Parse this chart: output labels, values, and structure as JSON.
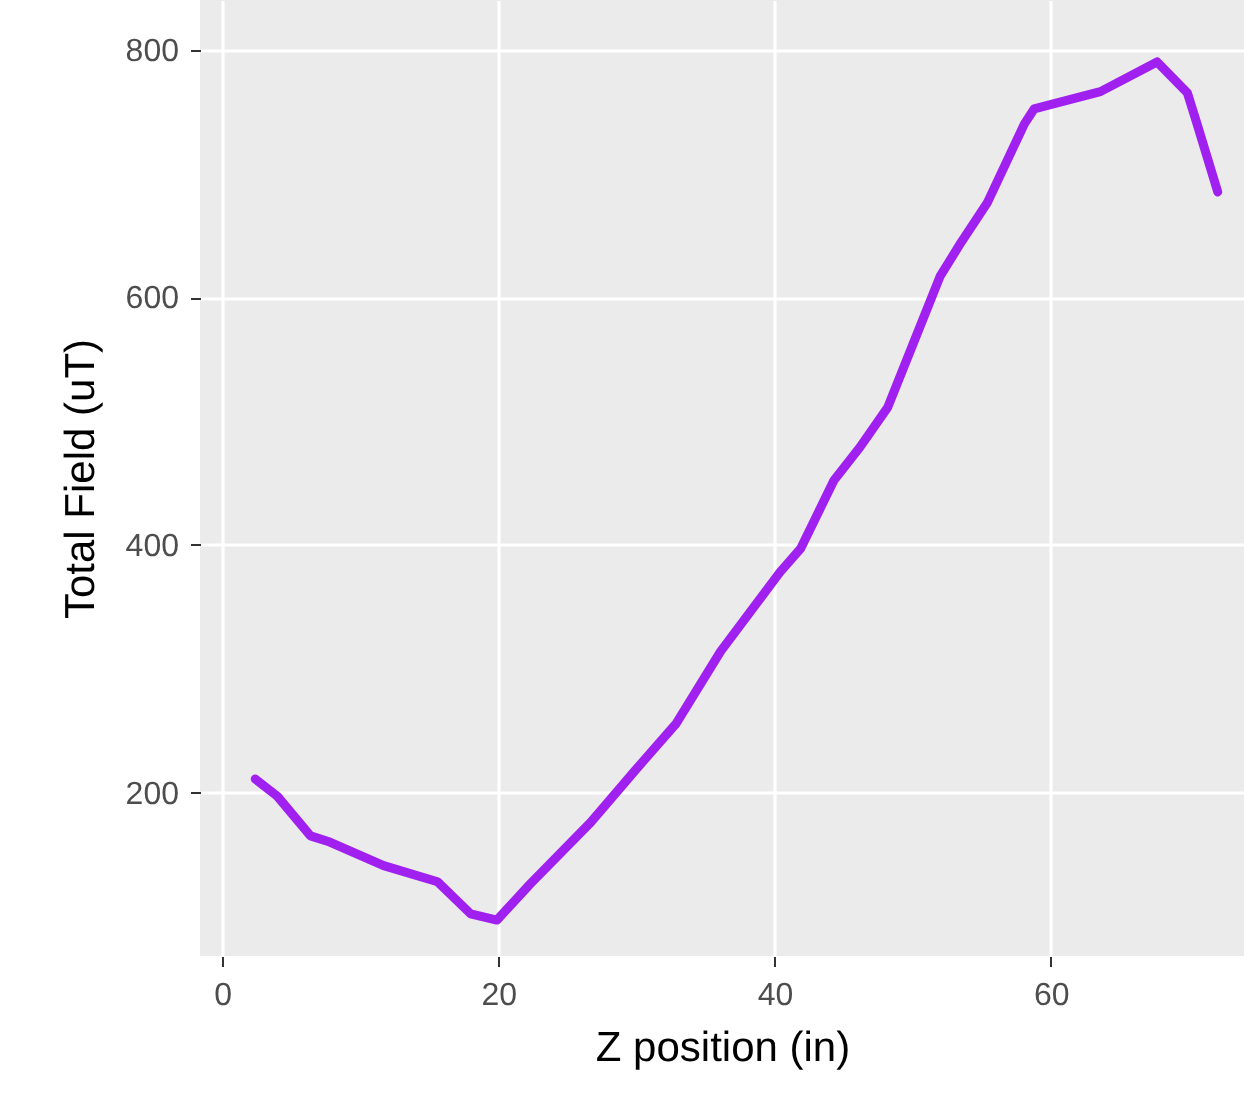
{
  "chart_data": {
    "type": "line",
    "xlabel": "Z position (in)",
    "ylabel": "Total Field (uT)",
    "xlim": [
      -1.6,
      74
    ],
    "ylim": [
      68,
      840
    ],
    "xticks": [
      0,
      20,
      40,
      60
    ],
    "yticks": [
      200,
      400,
      600,
      800
    ],
    "grid": true,
    "line_style": "solid",
    "x": [
      2.4,
      4.0,
      6.4,
      7.8,
      11.7,
      15.6,
      18.0,
      19.9,
      22.3,
      26.7,
      30.0,
      32.9,
      36.1,
      40.4,
      41.9,
      44.3,
      46.2,
      48.2,
      50.1,
      52.0,
      53.5,
      55.4,
      58.1,
      58.8,
      63.6,
      67.7,
      69.9,
      70.6,
      72.1
    ],
    "series": [
      {
        "color": "#a020f0",
        "values": [
          211,
          197,
          165,
          160,
          141,
          128,
          102,
          97,
          126,
          176,
          219,
          256,
          314,
          378,
          397,
          452,
          479,
          511,
          564,
          617,
          644,
          676,
          740,
          752,
          766,
          790,
          765,
          740,
          685
        ]
      }
    ]
  }
}
